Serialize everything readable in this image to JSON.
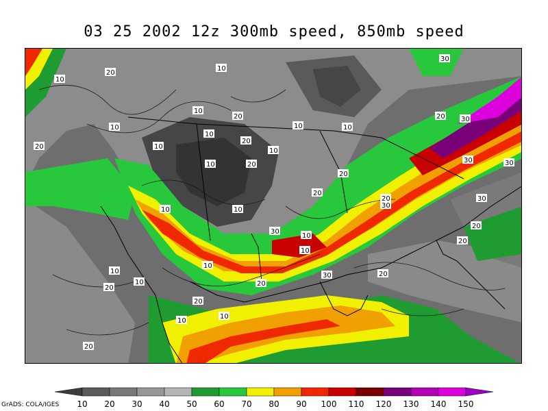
{
  "title": "03 25 2002 12z 300mb speed, 850mb speed",
  "credit": "GrADS: COLA/IGES",
  "colorbar": {
    "levels": [
      "10",
      "20",
      "30",
      "40",
      "50",
      "60",
      "70",
      "80",
      "90",
      "100",
      "110",
      "120",
      "130",
      "140",
      "150"
    ],
    "colors": [
      "#3c3c3c",
      "#5a5a5a",
      "#787878",
      "#969696",
      "#b4b4b4",
      "#1e9c32",
      "#28c83c",
      "#f0f000",
      "#f0a000",
      "#f02800",
      "#c80000",
      "#780000",
      "#780078",
      "#b400b4",
      "#dc00dc",
      "#a000c8"
    ]
  },
  "contour_labels": [
    {
      "text": "10"
    },
    {
      "text": "20"
    },
    {
      "text": "10"
    },
    {
      "text": "30"
    },
    {
      "text": "10"
    },
    {
      "text": "20"
    },
    {
      "text": "10"
    },
    {
      "text": "10"
    },
    {
      "text": "10"
    },
    {
      "text": "10"
    },
    {
      "text": "20"
    },
    {
      "text": "10"
    },
    {
      "text": "20"
    },
    {
      "text": "30"
    },
    {
      "text": "10"
    },
    {
      "text": "10"
    },
    {
      "text": "20"
    },
    {
      "text": "20"
    },
    {
      "text": "20"
    },
    {
      "text": "30"
    },
    {
      "text": "30"
    },
    {
      "text": "10"
    },
    {
      "text": "10"
    },
    {
      "text": "20"
    },
    {
      "text": "10"
    },
    {
      "text": "30"
    },
    {
      "text": "10"
    },
    {
      "text": "10"
    },
    {
      "text": "20"
    },
    {
      "text": "20"
    },
    {
      "text": "20"
    },
    {
      "text": "20"
    },
    {
      "text": "10"
    },
    {
      "text": "10"
    },
    {
      "text": "30"
    },
    {
      "text": "30"
    },
    {
      "text": "20"
    },
    {
      "text": "10"
    },
    {
      "text": "20"
    },
    {
      "text": "10"
    },
    {
      "text": "20"
    },
    {
      "text": "30"
    },
    {
      "text": "20"
    }
  ]
}
